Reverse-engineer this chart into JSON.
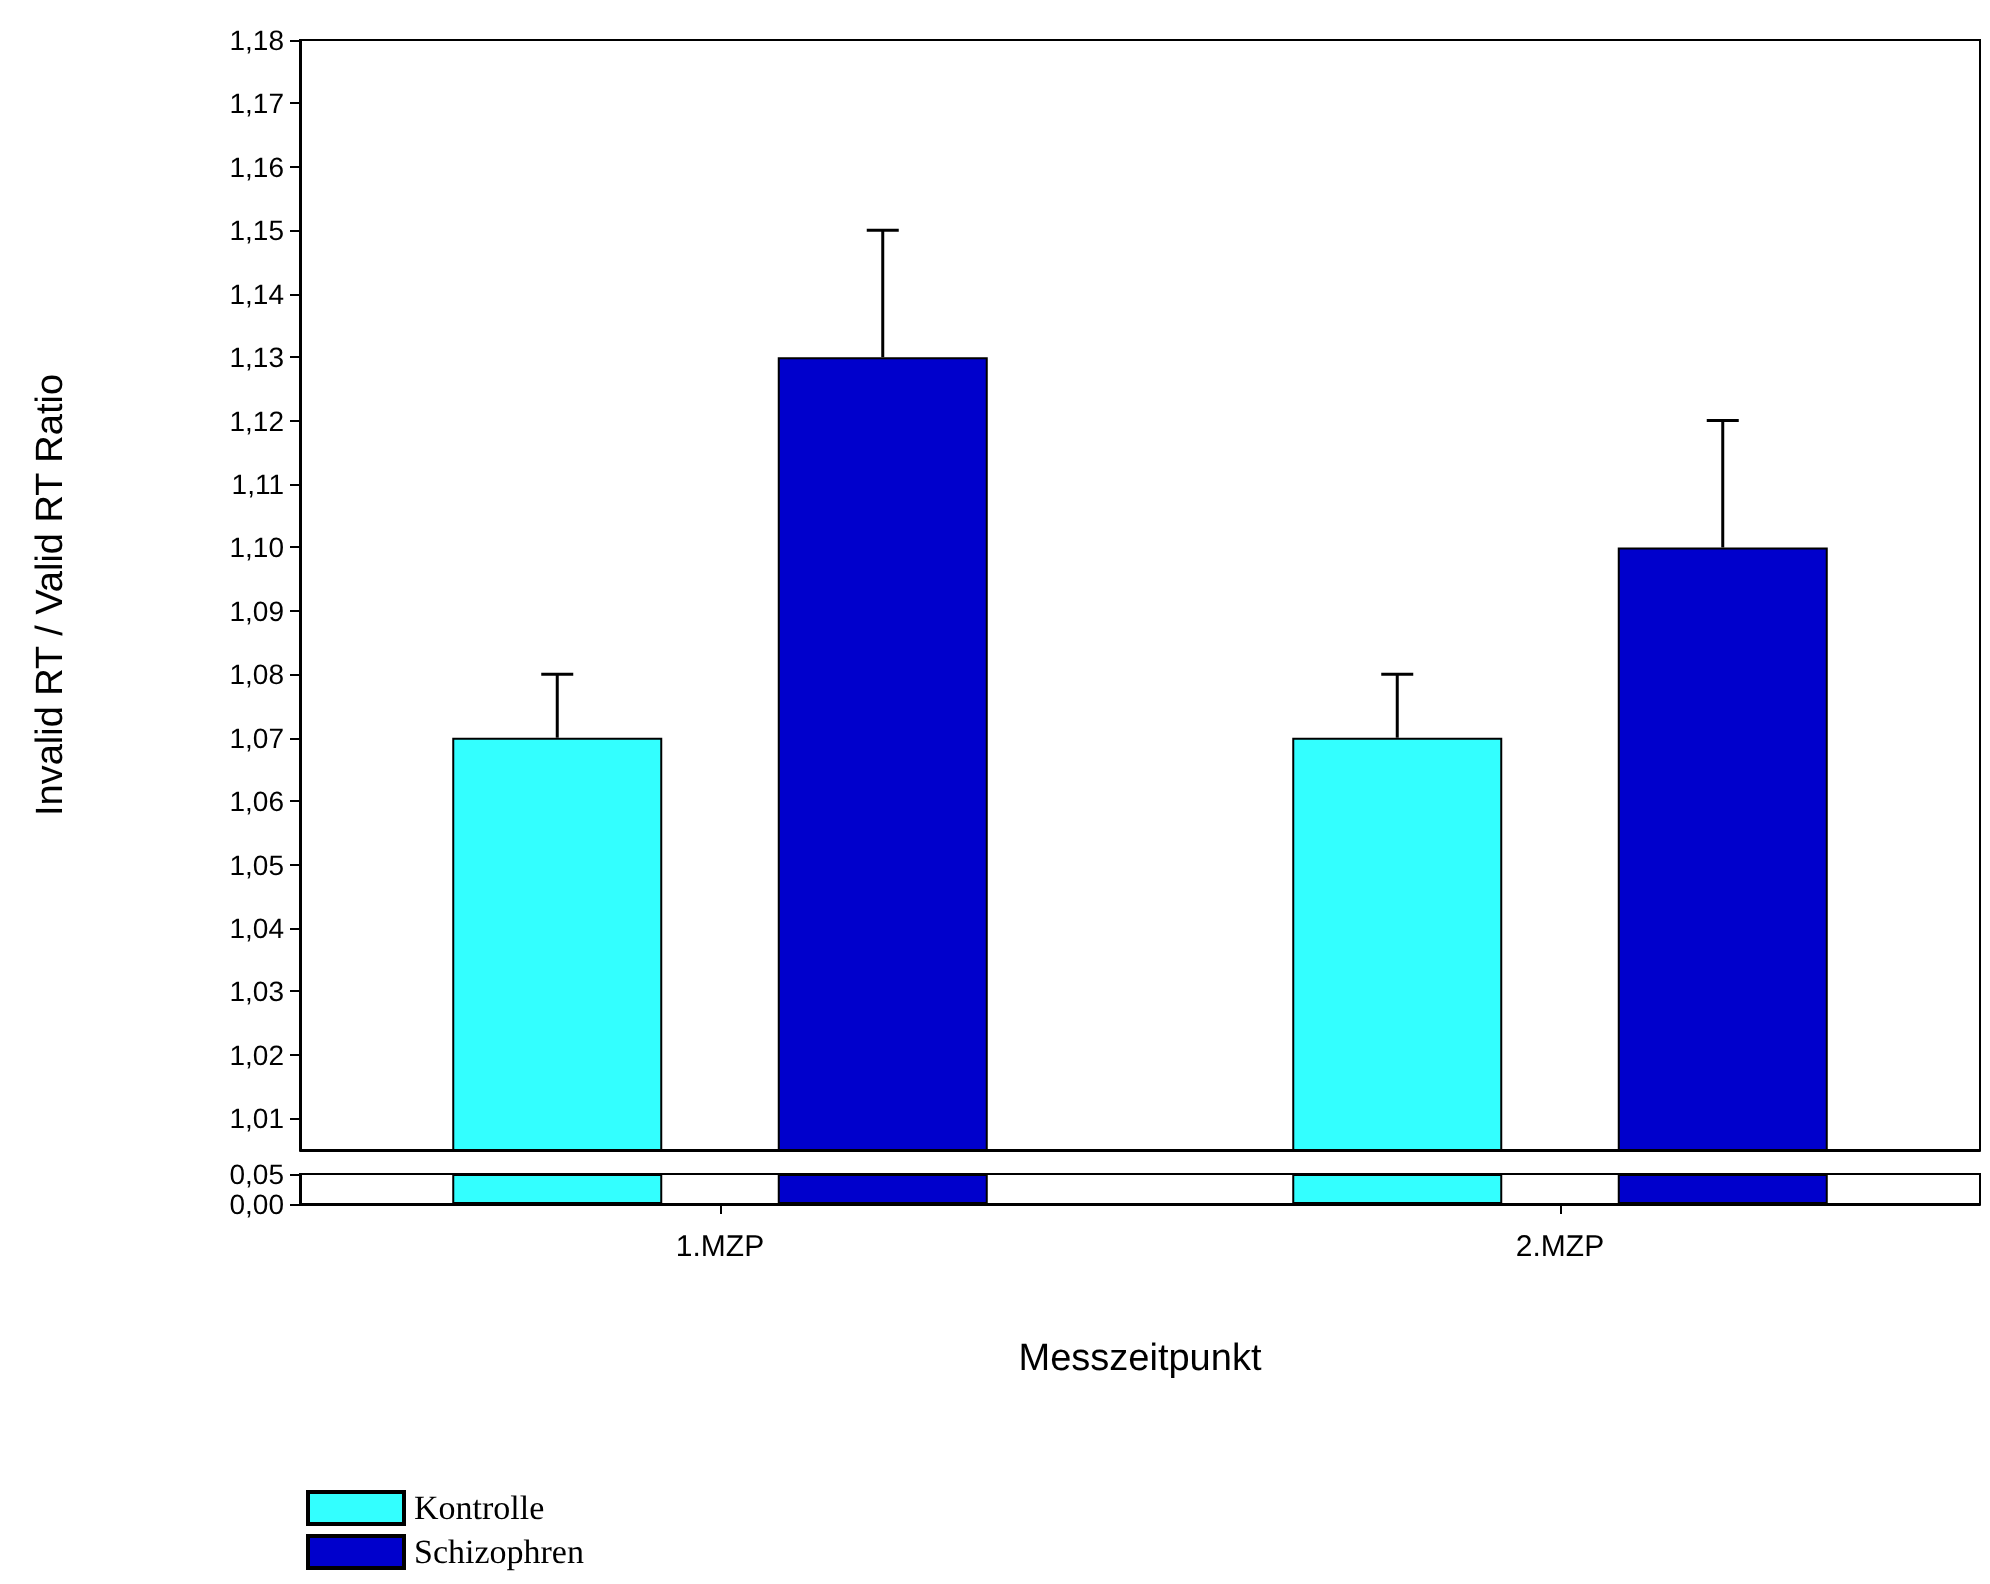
{
  "chart_data": [
    {
      "type": "bar",
      "ylabel": "Invalid RT / Valid RT Ratio",
      "categories": [
        null,
        null
      ],
      "series": [
        {
          "color": "#33ffff",
          "values": [
            1.07,
            1.07
          ],
          "errors": [
            [
              1.07,
              1.08
            ],
            [
              1.07,
              1.08
            ]
          ]
        },
        {
          "color": "#0000cc",
          "values": [
            1.13,
            1.1
          ],
          "errors": [
            [
              1.13,
              1.15
            ],
            [
              1.1,
              1.12
            ]
          ]
        }
      ],
      "ylim": [
        1.005,
        1.18
      ],
      "yticks": [
        {
          "value": 1.01,
          "label": "1,01"
        },
        {
          "value": 1.02,
          "label": "1,02"
        },
        {
          "value": 1.03,
          "label": "1,03"
        },
        {
          "value": 1.04,
          "label": "1,04"
        },
        {
          "value": 1.05,
          "label": "1,05"
        },
        {
          "value": 1.06,
          "label": "1,06"
        },
        {
          "value": 1.07,
          "label": "1,07"
        },
        {
          "value": 1.08,
          "label": "1,08"
        },
        {
          "value": 1.09,
          "label": "1,09"
        },
        {
          "value": 1.1,
          "label": "1,10"
        },
        {
          "value": 1.11,
          "label": "1,11"
        },
        {
          "value": 1.12,
          "label": "1,12"
        },
        {
          "value": 1.13,
          "label": "1,13"
        },
        {
          "value": 1.14,
          "label": "1,14"
        },
        {
          "value": 1.15,
          "label": "1,15"
        },
        {
          "value": 1.16,
          "label": "1,16"
        },
        {
          "value": 1.17,
          "label": "1,17"
        },
        {
          "value": 1.18,
          "label": "1,18"
        }
      ],
      "tick_labels": "y",
      "grid": false,
      "legend": false
    },
    {
      "type": "bar",
      "xlabel": "Messzeitpunkt",
      "categories": [
        "1.MZP",
        "2.MZP"
      ],
      "series": [
        {
          "name": "Kontrolle",
          "color": "#33ffff",
          "values": [
            0.05,
            0.05
          ]
        },
        {
          "name": "Schizophren",
          "color": "#0000cc",
          "values": [
            0.05,
            0.05
          ]
        }
      ],
      "ylim": [
        0,
        0.05
      ],
      "yticks": [
        {
          "value": 0,
          "label": "0,00"
        },
        {
          "value": 0.05,
          "label": "0,05"
        }
      ],
      "grid": false,
      "legend": "bottom left"
    }
  ]
}
